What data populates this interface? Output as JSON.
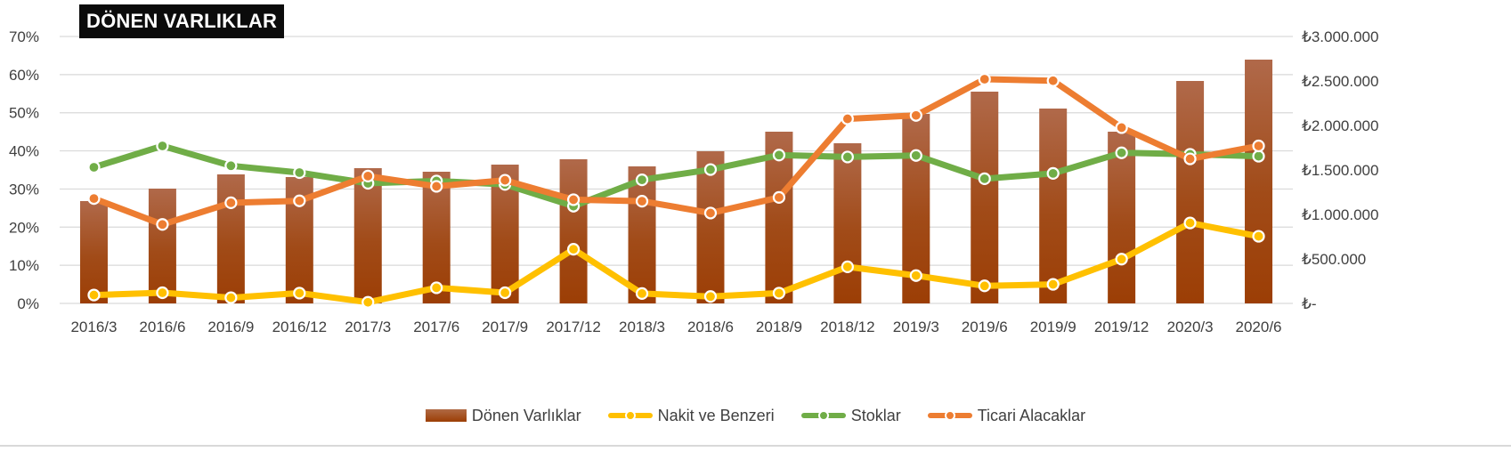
{
  "chart_data": {
    "type": "bar+line",
    "title": "DÖNEN VARLIKLAR",
    "categories": [
      "2016/3",
      "2016/6",
      "2016/9",
      "2016/12",
      "2017/3",
      "2017/6",
      "2017/9",
      "2017/12",
      "2018/3",
      "2018/6",
      "2018/9",
      "2018/12",
      "2019/3",
      "2019/6",
      "2019/9",
      "2019/12",
      "2020/3",
      "2020/6"
    ],
    "left_axis": {
      "ylim": [
        0,
        70
      ],
      "ticks": [
        "0%",
        "10%",
        "20%",
        "30%",
        "40%",
        "50%",
        "60%",
        "70%"
      ]
    },
    "right_axis": {
      "ylim": [
        0,
        3000000
      ],
      "ticks": [
        "₺-",
        "₺500.000",
        "₺1.000.000",
        "₺1.500.000",
        "₺2.000.000",
        "₺2.500.000",
        "₺3.000.000"
      ]
    },
    "grid": true,
    "legend_position": "bottom",
    "series": [
      {
        "name": "Dönen Varlıklar",
        "type": "bar",
        "axis": "right",
        "color": "#9c3e05",
        "values": [
          1150000,
          1290000,
          1450000,
          1420000,
          1520000,
          1480000,
          1560000,
          1620000,
          1540000,
          1710000,
          1930000,
          1800000,
          2130000,
          2380000,
          2190000,
          1930000,
          2500000,
          2740000
        ]
      },
      {
        "name": "Nakit ve Benzeri",
        "type": "line",
        "axis": "left",
        "color": "#ffc000",
        "values": [
          2.2,
          2.8,
          1.5,
          2.7,
          0.3,
          4.1,
          2.8,
          14.2,
          2.6,
          1.8,
          2.7,
          9.6,
          7.3,
          4.6,
          5.0,
          11.6,
          21.1,
          17.6
        ]
      },
      {
        "name": "Stoklar",
        "type": "line",
        "axis": "left",
        "color": "#70ad47",
        "values": [
          35.7,
          41.3,
          36.1,
          34.3,
          31.5,
          32.1,
          31.2,
          25.5,
          32.4,
          35.1,
          38.9,
          38.4,
          38.8,
          32.7,
          34.1,
          39.5,
          39.1,
          38.6
        ]
      },
      {
        "name": "Ticari Alacaklar",
        "type": "line",
        "axis": "left",
        "color": "#ed7d31",
        "values": [
          27.5,
          20.7,
          26.4,
          26.9,
          33.4,
          30.7,
          32.3,
          27.2,
          26.8,
          23.7,
          27.8,
          48.4,
          49.3,
          58.8,
          58.4,
          46.1,
          37.9,
          41.3
        ]
      }
    ]
  }
}
